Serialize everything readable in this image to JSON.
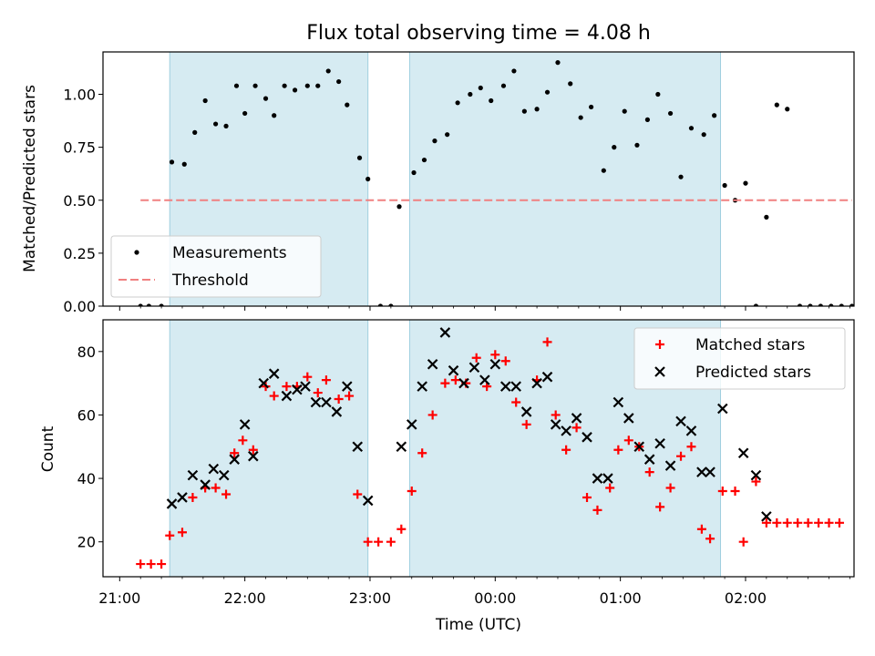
{
  "chart_data": [
    {
      "type": "scatter",
      "title": "Flux total observing time = 4.08 h",
      "xlabel": "",
      "ylabel": "Matched/Predicted stars",
      "xlim": [
        "20:52",
        "02:52"
      ],
      "ylim": [
        0,
        1.2
      ],
      "yticks": [
        "0.00",
        "0.25",
        "0.50",
        "0.75",
        "1.00"
      ],
      "shaded_intervals": [
        [
          "21:24",
          "22:59"
        ],
        [
          "23:19",
          "01:48"
        ]
      ],
      "legend_position": "lower-left",
      "series": [
        {
          "name": "Measurements",
          "style": "dots",
          "color": "#000000",
          "points": [
            [
              "21:10",
              0.0
            ],
            [
              "21:14",
              0.0
            ],
            [
              "21:20",
              0.0
            ],
            [
              "21:25",
              0.68
            ],
            [
              "21:31",
              0.67
            ],
            [
              "21:36",
              0.82
            ],
            [
              "21:41",
              0.97
            ],
            [
              "21:46",
              0.86
            ],
            [
              "21:51",
              0.85
            ],
            [
              "21:56",
              1.04
            ],
            [
              "22:00",
              0.91
            ],
            [
              "22:05",
              1.04
            ],
            [
              "22:10",
              0.98
            ],
            [
              "22:14",
              0.9
            ],
            [
              "22:19",
              1.04
            ],
            [
              "22:24",
              1.02
            ],
            [
              "22:30",
              1.04
            ],
            [
              "22:35",
              1.04
            ],
            [
              "22:40",
              1.11
            ],
            [
              "22:45",
              1.06
            ],
            [
              "22:49",
              0.95
            ],
            [
              "22:55",
              0.7
            ],
            [
              "22:59",
              0.6
            ],
            [
              "23:05",
              0.0
            ],
            [
              "23:10",
              0.0
            ],
            [
              "23:14",
              0.47
            ],
            [
              "23:21",
              0.63
            ],
            [
              "23:26",
              0.69
            ],
            [
              "23:31",
              0.78
            ],
            [
              "23:37",
              0.81
            ],
            [
              "23:42",
              0.96
            ],
            [
              "23:48",
              1.0
            ],
            [
              "23:53",
              1.03
            ],
            [
              "23:58",
              0.97
            ],
            [
              "00:04",
              1.04
            ],
            [
              "00:09",
              1.11
            ],
            [
              "00:14",
              0.92
            ],
            [
              "00:20",
              0.93
            ],
            [
              "00:25",
              1.01
            ],
            [
              "00:30",
              1.15
            ],
            [
              "00:36",
              1.05
            ],
            [
              "00:41",
              0.89
            ],
            [
              "00:46",
              0.94
            ],
            [
              "00:52",
              0.64
            ],
            [
              "00:57",
              0.75
            ],
            [
              "01:02",
              0.92
            ],
            [
              "01:08",
              0.76
            ],
            [
              "01:13",
              0.88
            ],
            [
              "01:18",
              1.0
            ],
            [
              "01:24",
              0.91
            ],
            [
              "01:29",
              0.61
            ],
            [
              "01:34",
              0.84
            ],
            [
              "01:40",
              0.81
            ],
            [
              "01:45",
              0.9
            ],
            [
              "01:50",
              0.57
            ],
            [
              "01:55",
              0.5
            ],
            [
              "02:00",
              0.58
            ],
            [
              "02:05",
              0.0
            ],
            [
              "02:10",
              0.42
            ],
            [
              "02:15",
              0.95
            ],
            [
              "02:20",
              0.93
            ],
            [
              "02:26",
              0.0
            ],
            [
              "02:31",
              0.0
            ],
            [
              "02:36",
              0.0
            ],
            [
              "02:41",
              0.0
            ],
            [
              "02:46",
              0.0
            ],
            [
              "02:51",
              0.0
            ]
          ]
        },
        {
          "name": "Threshold",
          "style": "dashed-line",
          "color": "#f08080",
          "points": [
            [
              "21:10",
              0.5
            ],
            [
              "02:51",
              0.5
            ]
          ]
        }
      ]
    },
    {
      "type": "scatter",
      "title": "",
      "xlabel": "Time (UTC)",
      "ylabel": "Count",
      "xlim": [
        "20:52",
        "02:52"
      ],
      "ylim": [
        9,
        90
      ],
      "yticks": [
        "20",
        "40",
        "60",
        "80"
      ],
      "xticks": [
        "21:00",
        "22:00",
        "23:00",
        "00:00",
        "01:00",
        "02:00"
      ],
      "shaded_intervals": [
        [
          "21:24",
          "22:59"
        ],
        [
          "23:19",
          "01:48"
        ]
      ],
      "legend_position": "top-right",
      "series": [
        {
          "name": "Matched stars",
          "marker": "plus",
          "color": "#ff0000",
          "points": [
            [
              "21:10",
              13
            ],
            [
              "21:15",
              13
            ],
            [
              "21:20",
              13
            ],
            [
              "21:24",
              22
            ],
            [
              "21:30",
              23
            ],
            [
              "21:35",
              34
            ],
            [
              "21:41",
              37
            ],
            [
              "21:46",
              37
            ],
            [
              "21:51",
              35
            ],
            [
              "21:55",
              48
            ],
            [
              "21:59",
              52
            ],
            [
              "22:04",
              49
            ],
            [
              "22:10",
              69
            ],
            [
              "22:14",
              66
            ],
            [
              "22:20",
              69
            ],
            [
              "22:25",
              69
            ],
            [
              "22:30",
              72
            ],
            [
              "22:35",
              67
            ],
            [
              "22:39",
              71
            ],
            [
              "22:45",
              65
            ],
            [
              "22:50",
              66
            ],
            [
              "22:54",
              35
            ],
            [
              "22:59",
              20
            ],
            [
              "23:04",
              20
            ],
            [
              "23:10",
              20
            ],
            [
              "23:15",
              24
            ],
            [
              "23:20",
              36
            ],
            [
              "23:25",
              48
            ],
            [
              "23:30",
              60
            ],
            [
              "23:36",
              70
            ],
            [
              "23:41",
              71
            ],
            [
              "23:46",
              70
            ],
            [
              "23:51",
              78
            ],
            [
              "23:56",
              69
            ],
            [
              "00:00",
              79
            ],
            [
              "00:05",
              77
            ],
            [
              "00:10",
              64
            ],
            [
              "00:15",
              57
            ],
            [
              "00:20",
              71
            ],
            [
              "00:25",
              83
            ],
            [
              "00:29",
              60
            ],
            [
              "00:34",
              49
            ],
            [
              "00:39",
              56
            ],
            [
              "00:44",
              34
            ],
            [
              "00:49",
              30
            ],
            [
              "00:55",
              37
            ],
            [
              "00:59",
              49
            ],
            [
              "01:04",
              52
            ],
            [
              "01:09",
              50
            ],
            [
              "01:14",
              42
            ],
            [
              "01:19",
              31
            ],
            [
              "01:24",
              37
            ],
            [
              "01:29",
              47
            ],
            [
              "01:34",
              50
            ],
            [
              "01:39",
              24
            ],
            [
              "01:43",
              21
            ],
            [
              "01:49",
              36
            ],
            [
              "01:55",
              36
            ],
            [
              "01:59",
              20
            ],
            [
              "02:05",
              39
            ],
            [
              "02:10",
              26
            ],
            [
              "02:15",
              26
            ],
            [
              "02:20",
              26
            ],
            [
              "02:25",
              26
            ],
            [
              "02:30",
              26
            ],
            [
              "02:35",
              26
            ],
            [
              "02:40",
              26
            ],
            [
              "02:45",
              26
            ]
          ]
        },
        {
          "name": "Predicted stars",
          "marker": "x",
          "color": "#000000",
          "points": [
            [
              "21:25",
              32
            ],
            [
              "21:30",
              34
            ],
            [
              "21:35",
              41
            ],
            [
              "21:41",
              38
            ],
            [
              "21:45",
              43
            ],
            [
              "21:50",
              41
            ],
            [
              "21:55",
              46
            ],
            [
              "22:00",
              57
            ],
            [
              "22:04",
              47
            ],
            [
              "22:09",
              70
            ],
            [
              "22:14",
              73
            ],
            [
              "22:20",
              66
            ],
            [
              "22:25",
              68
            ],
            [
              "22:29",
              69
            ],
            [
              "22:34",
              64
            ],
            [
              "22:39",
              64
            ],
            [
              "22:44",
              61
            ],
            [
              "22:49",
              69
            ],
            [
              "22:54",
              50
            ],
            [
              "22:59",
              33
            ],
            [
              "23:15",
              50
            ],
            [
              "23:20",
              57
            ],
            [
              "23:25",
              69
            ],
            [
              "23:30",
              76
            ],
            [
              "23:36",
              86
            ],
            [
              "23:40",
              74
            ],
            [
              "23:45",
              70
            ],
            [
              "23:50",
              75
            ],
            [
              "23:55",
              71
            ],
            [
              "00:00",
              76
            ],
            [
              "00:05",
              69
            ],
            [
              "00:10",
              69
            ],
            [
              "00:15",
              61
            ],
            [
              "00:20",
              70
            ],
            [
              "00:25",
              72
            ],
            [
              "00:29",
              57
            ],
            [
              "00:34",
              55
            ],
            [
              "00:39",
              59
            ],
            [
              "00:44",
              53
            ],
            [
              "00:49",
              40
            ],
            [
              "00:54",
              40
            ],
            [
              "00:59",
              64
            ],
            [
              "01:04",
              59
            ],
            [
              "01:09",
              50
            ],
            [
              "01:14",
              46
            ],
            [
              "01:19",
              51
            ],
            [
              "01:24",
              44
            ],
            [
              "01:29",
              58
            ],
            [
              "01:34",
              55
            ],
            [
              "01:39",
              42
            ],
            [
              "01:43",
              42
            ],
            [
              "01:49",
              62
            ],
            [
              "01:59",
              48
            ],
            [
              "02:05",
              41
            ],
            [
              "02:10",
              28
            ]
          ]
        }
      ]
    }
  ]
}
